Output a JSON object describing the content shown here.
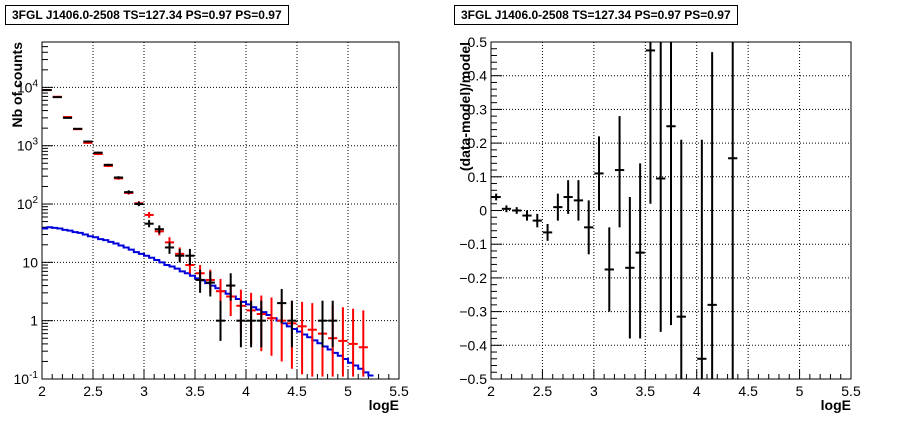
{
  "chart_data": [
    {
      "type": "scatter",
      "title": "3FGL J1406.0-2508 TS=127.34 PS=0.97 PS=0.97",
      "xlabel": "logE",
      "ylabel": "Nb of counts",
      "xlim": [
        2,
        5.5
      ],
      "ylim": [
        0.1,
        60000
      ],
      "yscale": "log",
      "grid": true,
      "xticks": [
        "2",
        "2.5",
        "3",
        "3.5",
        "4",
        "4.5",
        "5",
        "5.5"
      ],
      "yticks": [
        {
          "v": 0.1,
          "label": "10⁻¹",
          "base": "10",
          "exp": "-1"
        },
        {
          "v": 1,
          "label": "1"
        },
        {
          "v": 10,
          "label": "10"
        },
        {
          "v": 100,
          "label": "10²",
          "base": "10",
          "exp": "2"
        },
        {
          "v": 1000,
          "label": "10³",
          "base": "10",
          "exp": "3"
        },
        {
          "v": 10000,
          "label": "10⁴",
          "base": "10",
          "exp": "4"
        }
      ],
      "series": [
        {
          "role": "data",
          "color": "#000000",
          "points": [
            {
              "x": 2.05,
              "y": 9000,
              "lo": 8800,
              "hi": 9200
            },
            {
              "x": 2.15,
              "y": 6800,
              "lo": 6650,
              "hi": 6950
            },
            {
              "x": 2.25,
              "y": 3000,
              "lo": 2920,
              "hi": 3080
            },
            {
              "x": 2.35,
              "y": 1950,
              "lo": 1900,
              "hi": 2000
            },
            {
              "x": 2.45,
              "y": 1180,
              "lo": 1140,
              "hi": 1220
            },
            {
              "x": 2.55,
              "y": 760,
              "lo": 730,
              "hi": 790
            },
            {
              "x": 2.65,
              "y": 470,
              "lo": 450,
              "hi": 490
            },
            {
              "x": 2.75,
              "y": 285,
              "lo": 270,
              "hi": 300
            },
            {
              "x": 2.85,
              "y": 160,
              "lo": 150,
              "hi": 172
            },
            {
              "x": 2.95,
              "y": 100,
              "lo": 92,
              "hi": 110
            },
            {
              "x": 3.05,
              "y": 46,
              "lo": 40,
              "hi": 53
            },
            {
              "x": 3.15,
              "y": 37,
              "lo": 31,
              "hi": 43
            },
            {
              "x": 3.25,
              "y": 18,
              "lo": 14,
              "hi": 22
            },
            {
              "x": 3.35,
              "y": 13,
              "lo": 10,
              "hi": 17
            },
            {
              "x": 3.45,
              "y": 13,
              "lo": 9,
              "hi": 17
            },
            {
              "x": 3.55,
              "y": 5,
              "lo": 3,
              "hi": 7.5
            },
            {
              "x": 3.65,
              "y": 4.5,
              "lo": 2.6,
              "hi": 7
            },
            {
              "x": 3.75,
              "y": 1,
              "lo": 0.45,
              "hi": 2.2
            },
            {
              "x": 3.85,
              "y": 4,
              "lo": 2.2,
              "hi": 6.5
            },
            {
              "x": 3.95,
              "y": 1,
              "lo": 0.35,
              "hi": 2.2
            },
            {
              "x": 4.05,
              "y": 1,
              "lo": 0.35,
              "hi": 2.2
            },
            {
              "x": 4.15,
              "y": 1,
              "lo": 0.35,
              "hi": 2.2
            },
            {
              "x": 4.35,
              "y": 2,
              "lo": 0.9,
              "hi": 3.5
            },
            {
              "x": 4.45,
              "y": 1,
              "lo": 0.35,
              "hi": 2.2
            },
            {
              "x": 4.75,
              "y": 1,
              "lo": 0.35,
              "hi": 2.2
            },
            {
              "x": 4.85,
              "y": 1,
              "lo": 0.35,
              "hi": 2.2
            }
          ]
        },
        {
          "role": "total-model",
          "color": "#ff0000",
          "points": [
            {
              "x": 2.05,
              "y": 9000,
              "lo": 8800,
              "hi": 9200
            },
            {
              "x": 2.15,
              "y": 6900,
              "lo": 6750,
              "hi": 7050
            },
            {
              "x": 2.25,
              "y": 3100,
              "lo": 3020,
              "hi": 3180
            },
            {
              "x": 2.35,
              "y": 1920,
              "lo": 1870,
              "hi": 1970
            },
            {
              "x": 2.45,
              "y": 1120,
              "lo": 1080,
              "hi": 1160
            },
            {
              "x": 2.55,
              "y": 720,
              "lo": 690,
              "hi": 750
            },
            {
              "x": 2.65,
              "y": 450,
              "lo": 430,
              "hi": 470
            },
            {
              "x": 2.75,
              "y": 275,
              "lo": 260,
              "hi": 290
            },
            {
              "x": 2.85,
              "y": 155,
              "lo": 145,
              "hi": 166
            },
            {
              "x": 2.95,
              "y": 103,
              "lo": 95,
              "hi": 112
            },
            {
              "x": 3.05,
              "y": 65,
              "lo": 58,
              "hi": 73
            },
            {
              "x": 3.15,
              "y": 34,
              "lo": 29,
              "hi": 40
            },
            {
              "x": 3.25,
              "y": 22,
              "lo": 18,
              "hi": 27
            },
            {
              "x": 3.35,
              "y": 14,
              "lo": 11,
              "hi": 18
            },
            {
              "x": 3.45,
              "y": 9,
              "lo": 6.5,
              "hi": 12
            },
            {
              "x": 3.55,
              "y": 6.5,
              "lo": 4.3,
              "hi": 9
            },
            {
              "x": 3.65,
              "y": 5,
              "lo": 3,
              "hi": 7.5
            },
            {
              "x": 3.75,
              "y": 3.2,
              "lo": 1.6,
              "hi": 5.2
            },
            {
              "x": 3.85,
              "y": 2.6,
              "lo": 1.2,
              "hi": 4.4
            },
            {
              "x": 3.95,
              "y": 1.8,
              "lo": 0.6,
              "hi": 3.4
            },
            {
              "x": 4.05,
              "y": 1.5,
              "lo": 0.4,
              "hi": 3
            },
            {
              "x": 4.15,
              "y": 1.3,
              "lo": 0.3,
              "hi": 2.7
            },
            {
              "x": 4.25,
              "y": 1.1,
              "lo": 0.25,
              "hi": 2.5
            },
            {
              "x": 4.35,
              "y": 1,
              "lo": 0.2,
              "hi": 2.3
            },
            {
              "x": 4.45,
              "y": 0.9,
              "lo": 0.15,
              "hi": 2.2
            },
            {
              "x": 4.55,
              "y": 0.8,
              "lo": 0.12,
              "hi": 2.1
            },
            {
              "x": 4.65,
              "y": 0.7,
              "lo": 0.11,
              "hi": 2
            },
            {
              "x": 4.75,
              "y": 0.6,
              "lo": 0.11,
              "hi": 1.9
            },
            {
              "x": 4.85,
              "y": 0.5,
              "lo": 0.11,
              "hi": 1.8
            },
            {
              "x": 4.95,
              "y": 0.45,
              "lo": 0.11,
              "hi": 1.7
            },
            {
              "x": 5.05,
              "y": 0.4,
              "lo": 0.11,
              "hi": 1.6
            },
            {
              "x": 5.15,
              "y": 0.35,
              "lo": 0.11,
              "hi": 1.5
            }
          ]
        },
        {
          "role": "component-model",
          "style": "step",
          "color": "#0000dd",
          "edges": [
            2.0,
            2.05,
            2.1,
            2.15,
            2.2,
            2.25,
            2.3,
            2.35,
            2.4,
            2.45,
            2.5,
            2.55,
            2.6,
            2.65,
            2.7,
            2.75,
            2.8,
            2.85,
            2.9,
            2.95,
            3.0,
            3.05,
            3.1,
            3.15,
            3.2,
            3.25,
            3.3,
            3.35,
            3.4,
            3.45,
            3.5,
            3.55,
            3.6,
            3.65,
            3.7,
            3.75,
            3.8,
            3.85,
            3.9,
            3.95,
            4.0,
            4.05,
            4.1,
            4.15,
            4.2,
            4.25,
            4.3,
            4.35,
            4.4,
            4.45,
            4.5,
            4.55,
            4.6,
            4.65,
            4.7,
            4.75,
            4.8,
            4.85,
            4.9,
            4.95,
            5.0,
            5.05,
            5.1,
            5.15,
            5.2,
            5.25
          ],
          "values": [
            38,
            40,
            39,
            38,
            36,
            35,
            33,
            32,
            30,
            28,
            27,
            25,
            24,
            22.5,
            21,
            19.5,
            18,
            16.5,
            15,
            14,
            13,
            12,
            11,
            10,
            9,
            8.5,
            7.8,
            7,
            6.5,
            5.9,
            5.3,
            4.9,
            4.4,
            4,
            3.6,
            3.2,
            2.9,
            2.6,
            2.35,
            2.1,
            1.9,
            1.7,
            1.55,
            1.4,
            1.25,
            1.1,
            1.0,
            0.9,
            0.8,
            0.72,
            0.65,
            0.58,
            0.52,
            0.46,
            0.41,
            0.36,
            0.32,
            0.28,
            0.25,
            0.22,
            0.19,
            0.17,
            0.15,
            0.13,
            0.115
          ]
        }
      ]
    },
    {
      "type": "scatter",
      "title": "3FGL J1406.0-2508 TS=127.34 PS=0.97 PS=0.97",
      "xlabel": "logE",
      "ylabel": "(data-model)/model",
      "xlim": [
        2,
        5.5
      ],
      "ylim": [
        -0.5,
        0.5
      ],
      "grid": true,
      "xticks": [
        "2",
        "2.5",
        "3",
        "3.5",
        "4",
        "4.5",
        "5",
        "5.5"
      ],
      "yticks": [
        "-0.5",
        "-0.4",
        "-0.3",
        "-0.2",
        "-0.1",
        "0",
        "0.1",
        "0.2",
        "0.3",
        "0.4",
        "0.5"
      ],
      "series": [
        {
          "role": "residual",
          "color": "#000000",
          "points": [
            {
              "x": 2.05,
              "y": 0.04,
              "lo": 0.03,
              "hi": 0.05
            },
            {
              "x": 2.15,
              "y": 0.005,
              "lo": -0.005,
              "hi": 0.015
            },
            {
              "x": 2.25,
              "y": 0.0,
              "lo": -0.01,
              "hi": 0.01
            },
            {
              "x": 2.35,
              "y": -0.015,
              "lo": -0.03,
              "hi": 0.0
            },
            {
              "x": 2.45,
              "y": -0.03,
              "lo": -0.05,
              "hi": -0.01
            },
            {
              "x": 2.55,
              "y": -0.065,
              "lo": -0.09,
              "hi": -0.04
            },
            {
              "x": 2.65,
              "y": 0.01,
              "lo": -0.03,
              "hi": 0.05
            },
            {
              "x": 2.75,
              "y": 0.04,
              "lo": -0.01,
              "hi": 0.09
            },
            {
              "x": 2.85,
              "y": 0.03,
              "lo": -0.03,
              "hi": 0.09
            },
            {
              "x": 2.95,
              "y": -0.05,
              "lo": -0.13,
              "hi": 0.03
            },
            {
              "x": 3.05,
              "y": 0.11,
              "lo": 0.0,
              "hi": 0.22
            },
            {
              "x": 3.15,
              "y": -0.175,
              "lo": -0.3,
              "hi": -0.05
            },
            {
              "x": 3.25,
              "y": 0.12,
              "lo": -0.05,
              "hi": 0.28
            },
            {
              "x": 3.35,
              "y": -0.17,
              "lo": -0.38,
              "hi": 0.04
            },
            {
              "x": 3.45,
              "y": -0.125,
              "lo": -0.38,
              "hi": 0.14
            },
            {
              "x": 3.55,
              "y": 0.475,
              "lo": 0.02,
              "hi": 0.6
            },
            {
              "x": 3.65,
              "y": 0.095,
              "lo": -0.36,
              "hi": 0.6
            },
            {
              "x": 3.75,
              "y": 0.25,
              "lo": -0.34,
              "hi": 0.6
            },
            {
              "x": 3.85,
              "y": -0.315,
              "lo": -0.6,
              "hi": 0.21
            },
            {
              "x": 4.05,
              "y": -0.44,
              "lo": -0.6,
              "hi": 0.21
            },
            {
              "x": 4.15,
              "y": -0.28,
              "lo": -0.6,
              "hi": 0.47
            },
            {
              "x": 4.35,
              "y": 0.155,
              "lo": -0.6,
              "hi": 0.6
            }
          ]
        }
      ]
    }
  ]
}
